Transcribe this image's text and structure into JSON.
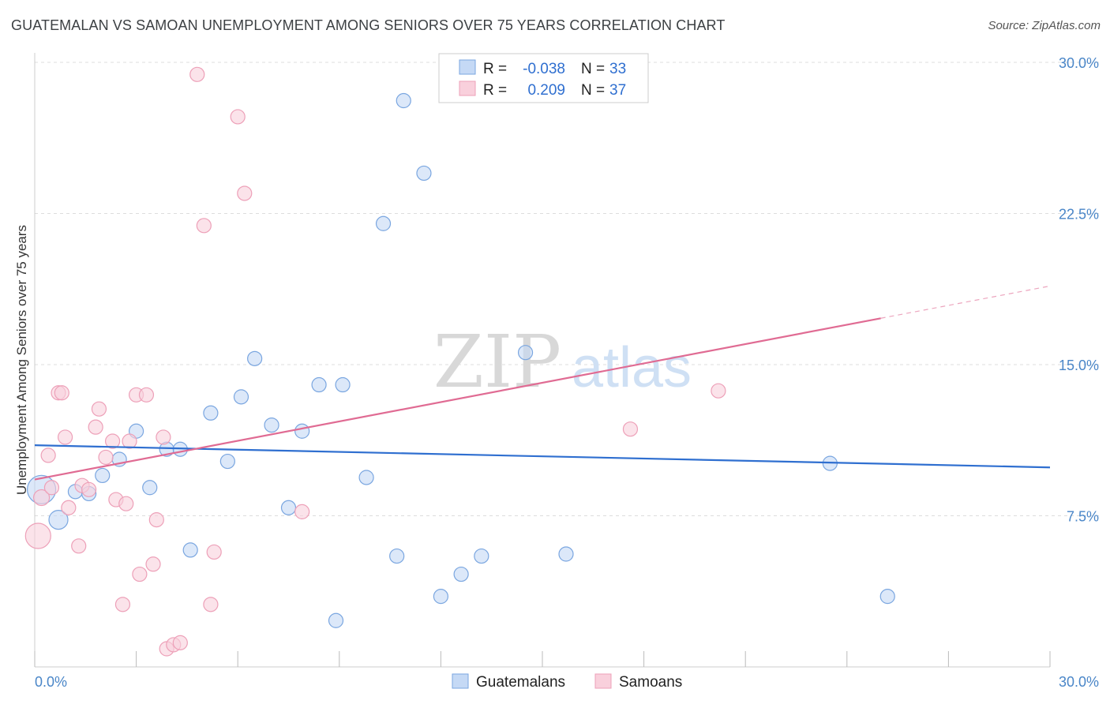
{
  "title": "GUATEMALAN VS SAMOAN UNEMPLOYMENT AMONG SENIORS OVER 75 YEARS CORRELATION CHART",
  "source": "Source: ZipAtlas.com",
  "watermark": {
    "zip": "ZIP",
    "atlas": "atlas"
  },
  "colors": {
    "blue_fill": "#c5d9f5",
    "blue_stroke": "#7aa6e0",
    "blue_line": "#2f6fd0",
    "pink_fill": "#f9d0dc",
    "pink_stroke": "#eda0b8",
    "pink_line": "#e06b93",
    "grid": "#dddddd",
    "axis_text": "#4a86c8"
  },
  "chart_data": {
    "type": "scatter",
    "title": "GUATEMALAN VS SAMOAN UNEMPLOYMENT AMONG SENIORS OVER 75 YEARS CORRELATION CHART",
    "xlabel": "",
    "ylabel": "Unemployment Among Seniors over 75 years",
    "xlim": [
      0,
      30
    ],
    "ylim": [
      0,
      30
    ],
    "x_tick_labels": [
      "0.0%",
      "30.0%"
    ],
    "y_ticks": [
      7.5,
      15.0,
      22.5,
      30.0
    ],
    "y_tick_labels": [
      "7.5%",
      "15.0%",
      "22.5%",
      "30.0%"
    ],
    "legend": {
      "rows": [
        {
          "r_label": "R =",
          "r_value": "-0.038",
          "n_label": "N =",
          "n_value": "33"
        },
        {
          "r_label": "R =",
          "r_value": "0.209",
          "n_label": "N =",
          "n_value": "37"
        }
      ],
      "bottom": [
        "Guatemalans",
        "Samoans"
      ]
    },
    "series": [
      {
        "name": "Guatemalans",
        "trend": {
          "x0": 0,
          "y0": 11.0,
          "x1": 30,
          "y1": 9.9,
          "dashed_from": null
        },
        "points": [
          [
            0.2,
            8.8,
            18
          ],
          [
            0.7,
            7.3,
            12
          ],
          [
            1.2,
            8.7,
            9
          ],
          [
            1.6,
            8.6,
            9
          ],
          [
            2.0,
            9.5,
            9
          ],
          [
            2.5,
            10.3,
            9
          ],
          [
            3.0,
            11.7,
            9
          ],
          [
            3.4,
            8.9,
            9
          ],
          [
            3.9,
            10.8,
            9
          ],
          [
            4.3,
            10.8,
            9
          ],
          [
            4.6,
            5.8,
            9
          ],
          [
            5.2,
            12.6,
            9
          ],
          [
            5.7,
            10.2,
            9
          ],
          [
            6.1,
            13.4,
            9
          ],
          [
            6.5,
            15.3,
            9
          ],
          [
            7.0,
            12.0,
            9
          ],
          [
            7.5,
            7.9,
            9
          ],
          [
            7.9,
            11.7,
            9
          ],
          [
            8.4,
            14.0,
            9
          ],
          [
            8.9,
            2.3,
            9
          ],
          [
            9.1,
            14.0,
            9
          ],
          [
            9.8,
            9.4,
            9
          ],
          [
            10.3,
            22.0,
            9
          ],
          [
            10.7,
            5.5,
            9
          ],
          [
            10.9,
            28.1,
            9
          ],
          [
            11.5,
            24.5,
            9
          ],
          [
            12.0,
            3.5,
            9
          ],
          [
            12.6,
            4.6,
            9
          ],
          [
            13.2,
            5.5,
            9
          ],
          [
            14.5,
            15.6,
            9
          ],
          [
            15.7,
            5.6,
            9
          ],
          [
            23.5,
            10.1,
            9
          ],
          [
            25.2,
            3.5,
            9
          ]
        ]
      },
      {
        "name": "Samoans",
        "trend": {
          "x0": 0,
          "y0": 9.3,
          "x1": 30,
          "y1": 18.9,
          "dashed_from": 25.0
        },
        "points": [
          [
            0.1,
            6.5,
            16
          ],
          [
            0.2,
            8.4,
            10
          ],
          [
            0.4,
            10.5,
            9
          ],
          [
            0.5,
            8.9,
            9
          ],
          [
            0.7,
            13.6,
            9
          ],
          [
            0.8,
            13.6,
            9
          ],
          [
            0.9,
            11.4,
            9
          ],
          [
            1.0,
            7.9,
            9
          ],
          [
            1.3,
            6.0,
            9
          ],
          [
            1.4,
            9.0,
            9
          ],
          [
            1.6,
            8.8,
            9
          ],
          [
            1.8,
            11.9,
            9
          ],
          [
            1.9,
            12.8,
            9
          ],
          [
            2.1,
            10.4,
            9
          ],
          [
            2.3,
            11.2,
            9
          ],
          [
            2.4,
            8.3,
            9
          ],
          [
            2.6,
            3.1,
            9
          ],
          [
            2.7,
            8.1,
            9
          ],
          [
            2.8,
            11.2,
            9
          ],
          [
            3.0,
            13.5,
            9
          ],
          [
            3.1,
            4.6,
            9
          ],
          [
            3.3,
            13.5,
            9
          ],
          [
            3.5,
            5.1,
            9
          ],
          [
            3.6,
            7.3,
            9
          ],
          [
            3.8,
            11.4,
            9
          ],
          [
            3.9,
            0.9,
            9
          ],
          [
            4.1,
            1.1,
            9
          ],
          [
            4.3,
            1.2,
            9
          ],
          [
            4.8,
            29.4,
            9
          ],
          [
            5.0,
            21.9,
            9
          ],
          [
            5.2,
            3.1,
            9
          ],
          [
            5.3,
            5.7,
            9
          ],
          [
            6.0,
            27.3,
            9
          ],
          [
            6.2,
            23.5,
            9
          ],
          [
            7.9,
            7.7,
            9
          ],
          [
            17.6,
            11.8,
            9
          ],
          [
            20.2,
            13.7,
            9
          ]
        ]
      }
    ]
  }
}
